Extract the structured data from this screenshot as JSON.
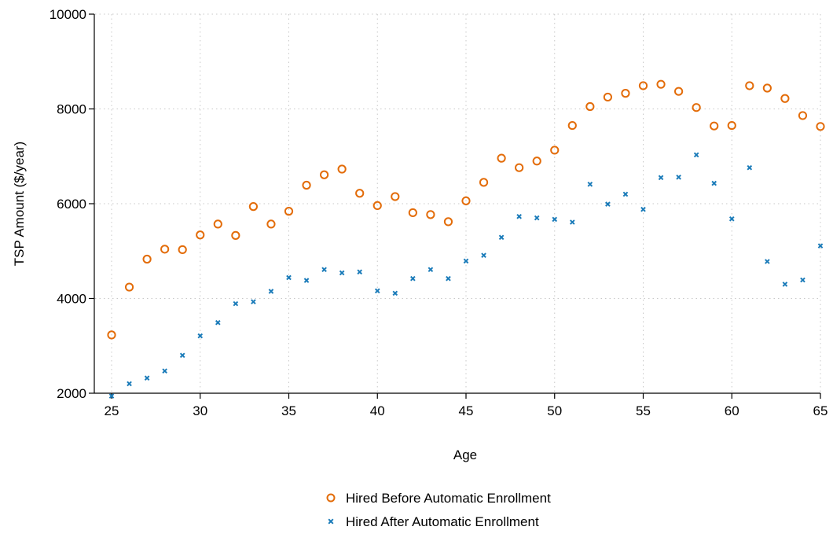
{
  "chart_data": {
    "type": "scatter",
    "title": "",
    "xlabel": "Age",
    "ylabel": "TSP Amount ($/year)",
    "xlim": [
      25,
      65
    ],
    "ylim": [
      2000,
      10000
    ],
    "xticks": [
      25,
      30,
      35,
      40,
      45,
      50,
      55,
      60,
      65
    ],
    "yticks": [
      2000,
      4000,
      6000,
      8000,
      10000
    ],
    "grid": true,
    "legend_position": "bottom",
    "colors": {
      "before": "#e36c09",
      "after": "#1a7bb9"
    },
    "x": [
      25,
      26,
      27,
      28,
      29,
      30,
      31,
      32,
      33,
      34,
      35,
      36,
      37,
      38,
      39,
      40,
      41,
      42,
      43,
      44,
      45,
      46,
      47,
      48,
      49,
      50,
      51,
      52,
      53,
      54,
      55,
      56,
      57,
      58,
      59,
      60,
      61,
      62,
      63,
      64,
      65
    ],
    "series": [
      {
        "name": "Hired Before Automatic Enrollment",
        "marker": "circle",
        "values": [
          3230,
          4240,
          4830,
          5040,
          5030,
          5340,
          5570,
          5330,
          5940,
          5570,
          5840,
          6390,
          6610,
          6730,
          6220,
          5960,
          6150,
          5810,
          5770,
          5620,
          6060,
          6450,
          6960,
          6760,
          6900,
          7130,
          7650,
          8050,
          8250,
          8330,
          8490,
          8520,
          8370,
          8030,
          7640,
          7650,
          8490,
          8440,
          8220,
          7860,
          7630
        ]
      },
      {
        "name": "Hired After Automatic Enrollment",
        "marker": "x",
        "values": [
          1940,
          2200,
          2320,
          2470,
          2800,
          3210,
          3490,
          3890,
          3930,
          4150,
          4440,
          4380,
          4610,
          4540,
          4560,
          4160,
          4110,
          4420,
          4610,
          4420,
          4790,
          4910,
          5290,
          5730,
          5700,
          5670,
          5610,
          6410,
          5990,
          6200,
          5880,
          6550,
          6560,
          7030,
          6430,
          5680,
          6760,
          4780,
          4300,
          4390,
          5110
        ]
      }
    ]
  }
}
